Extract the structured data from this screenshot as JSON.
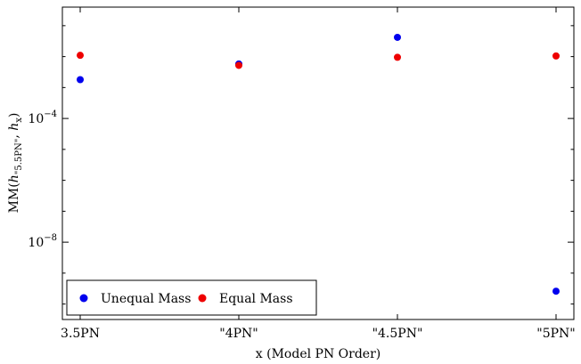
{
  "chart_data": {
    "type": "scatter",
    "categories": [
      "3.5PN",
      "\"4PN\"",
      "\"4.5PN\"",
      "\"5PN\""
    ],
    "xlabel": "x (Model PN Order)",
    "ylabel_prefix": "MM(",
    "ylabel_h1": "h",
    "ylabel_sub1": "\"5.5PN\"",
    "ylabel_sep": ", ",
    "ylabel_h2": "h",
    "ylabel_sub2": "x",
    "ylabel_suffix": ")",
    "yscale": "log",
    "ylim_log10": [
      -10.5,
      -0.4
    ],
    "y_ticks": [
      {
        "base": "10",
        "exp": "−4",
        "log10": -4
      },
      {
        "base": "10",
        "exp": "−8",
        "log10": -8
      }
    ],
    "series": [
      {
        "name": "Unequal Mass",
        "color": "#0000ee",
        "values": [
          0.0018,
          0.0058,
          0.042,
          2.6e-10
        ]
      },
      {
        "name": "Equal Mass",
        "color": "#ee0000",
        "values": [
          0.011,
          0.0052,
          0.0095,
          0.0105
        ]
      }
    ],
    "legend": "bottom-left",
    "grid": false
  }
}
